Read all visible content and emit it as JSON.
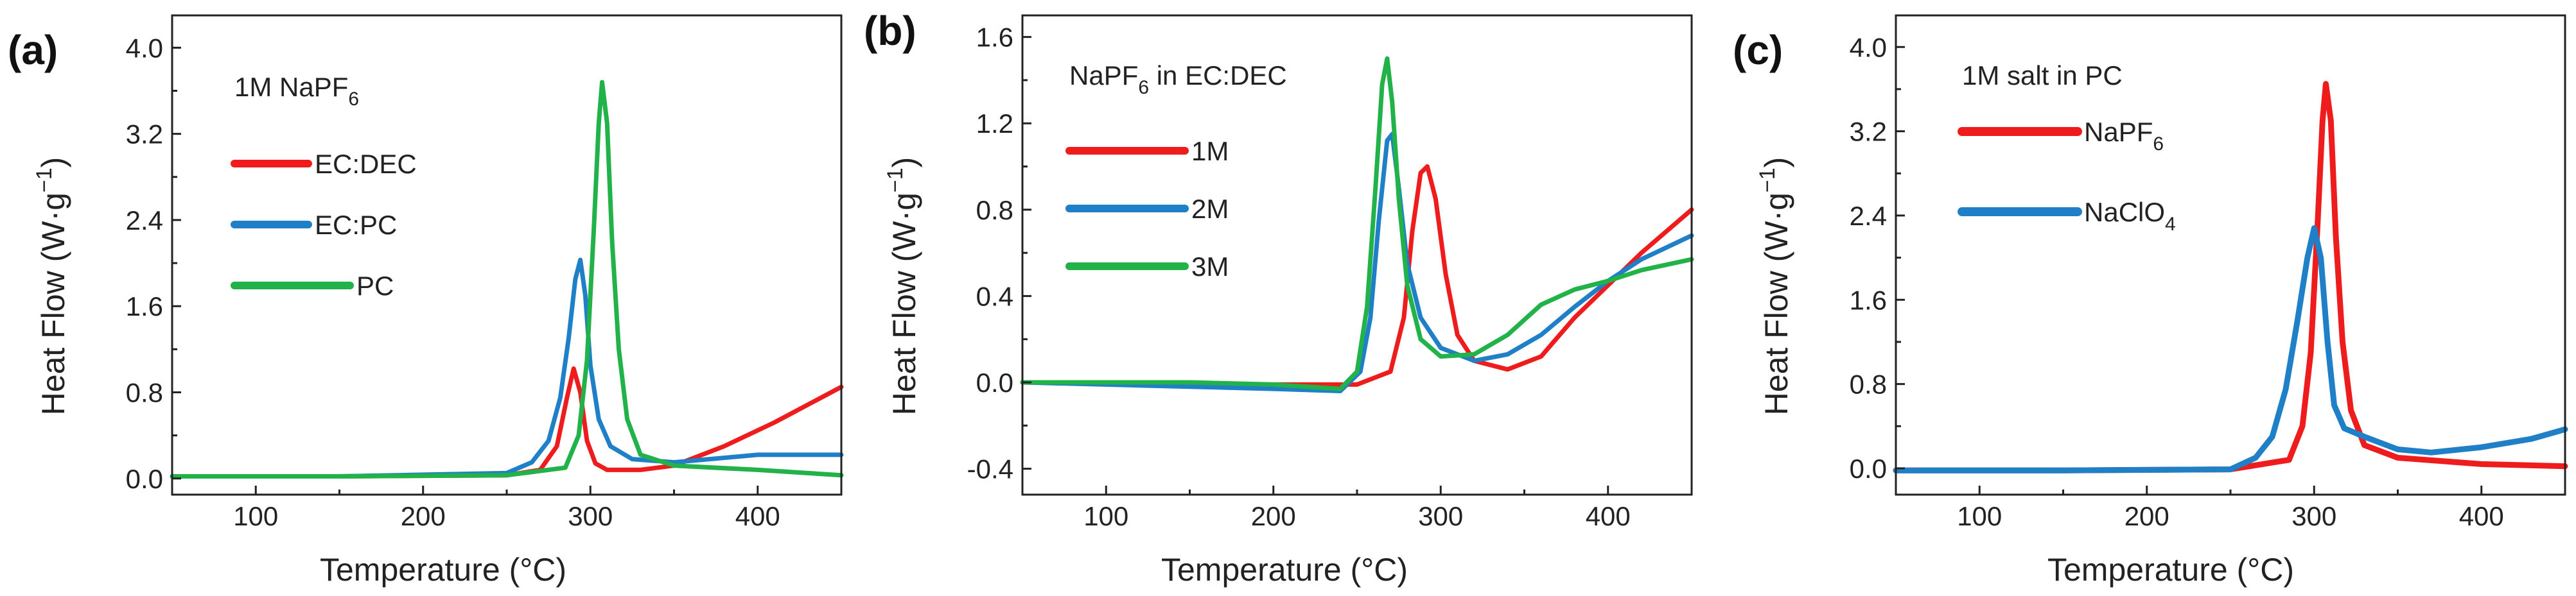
{
  "figure": {
    "colors": {
      "red": "#ee1c1c",
      "blue": "#1f80c8",
      "green": "#22b24a",
      "axis": "#222222"
    }
  },
  "chart_data": [
    {
      "panel_label": "(a)",
      "type": "line",
      "title": "1M NaPF",
      "title_sub": "6",
      "xlabel": "Temperature (°C)",
      "ylabel": "Heat Flow (W·g",
      "ylabel_sup": "−1",
      "ylabel_close": ")",
      "xlim": [
        50,
        450
      ],
      "ylim": [
        -0.15,
        4.3
      ],
      "xticks": [
        100,
        200,
        300,
        400
      ],
      "xtick_labels": [
        "100",
        "200",
        "300",
        "400"
      ],
      "yticks": [
        0.0,
        0.8,
        1.6,
        2.4,
        3.2,
        4.0
      ],
      "ytick_labels": [
        "0.0",
        "0.8",
        "1.6",
        "2.4",
        "3.2",
        "4.0"
      ],
      "series": [
        {
          "name": "EC:DEC",
          "color": "#ee1c1c",
          "x": [
            50,
            150,
            250,
            270,
            280,
            286,
            290,
            294,
            298,
            303,
            310,
            330,
            350,
            380,
            410,
            450
          ],
          "y": [
            0.02,
            0.02,
            0.03,
            0.08,
            0.3,
            0.75,
            1.02,
            0.8,
            0.35,
            0.14,
            0.08,
            0.08,
            0.12,
            0.3,
            0.52,
            0.85
          ]
        },
        {
          "name": "EC:PC",
          "color": "#1f80c8",
          "x": [
            50,
            150,
            250,
            265,
            275,
            282,
            287,
            291,
            294,
            297,
            300,
            305,
            312,
            325,
            350,
            400,
            450
          ],
          "y": [
            0.02,
            0.02,
            0.05,
            0.15,
            0.35,
            0.75,
            1.3,
            1.85,
            2.03,
            1.7,
            1.05,
            0.55,
            0.3,
            0.18,
            0.15,
            0.22,
            0.22
          ]
        },
        {
          "name": "PC",
          "color": "#22b24a",
          "x": [
            50,
            150,
            250,
            285,
            293,
            298,
            302,
            305,
            307,
            310,
            313,
            317,
            322,
            330,
            350,
            400,
            450
          ],
          "y": [
            0.02,
            0.02,
            0.03,
            0.1,
            0.4,
            1.1,
            2.3,
            3.3,
            3.68,
            3.3,
            2.2,
            1.2,
            0.55,
            0.22,
            0.12,
            0.08,
            0.03
          ]
        }
      ]
    },
    {
      "panel_label": "(b)",
      "type": "line",
      "title": "NaPF",
      "title_sub": "6",
      "title_rest": " in EC:DEC",
      "xlabel": "Temperature (°C)",
      "ylabel": "Heat Flow (W·g",
      "ylabel_sup": "−1",
      "ylabel_close": ")",
      "xlim": [
        50,
        450
      ],
      "ylim": [
        -0.52,
        1.7
      ],
      "xticks": [
        100,
        200,
        300,
        400
      ],
      "xtick_labels": [
        "100",
        "200",
        "300",
        "400"
      ],
      "yticks": [
        -0.4,
        0.0,
        0.4,
        0.8,
        1.2,
        1.6
      ],
      "ytick_labels": [
        "-0.4",
        "0.0",
        "0.4",
        "0.8",
        "1.2",
        "1.6"
      ],
      "series": [
        {
          "name": "1M",
          "color": "#ee1c1c",
          "x": [
            50,
            150,
            250,
            270,
            278,
            283,
            288,
            292,
            297,
            303,
            310,
            320,
            340,
            360,
            380,
            400,
            420,
            450
          ],
          "y": [
            0.0,
            -0.01,
            -0.01,
            0.05,
            0.3,
            0.7,
            0.97,
            1.0,
            0.85,
            0.5,
            0.22,
            0.1,
            0.06,
            0.12,
            0.3,
            0.45,
            0.6,
            0.8
          ]
        },
        {
          "name": "2M",
          "color": "#1f80c8",
          "x": [
            50,
            150,
            200,
            240,
            252,
            258,
            263,
            268,
            271,
            275,
            280,
            288,
            300,
            320,
            340,
            360,
            380,
            400,
            420,
            450
          ],
          "y": [
            0.0,
            -0.02,
            -0.03,
            -0.04,
            0.05,
            0.3,
            0.75,
            1.12,
            1.15,
            0.9,
            0.55,
            0.3,
            0.16,
            0.1,
            0.13,
            0.22,
            0.35,
            0.47,
            0.57,
            0.68
          ]
        },
        {
          "name": "3M",
          "color": "#22b24a",
          "x": [
            50,
            150,
            200,
            240,
            250,
            256,
            261,
            265,
            268,
            271,
            275,
            280,
            288,
            300,
            320,
            340,
            360,
            380,
            400,
            420,
            450
          ],
          "y": [
            0.0,
            0.0,
            -0.01,
            -0.03,
            0.05,
            0.35,
            0.9,
            1.38,
            1.5,
            1.3,
            0.85,
            0.45,
            0.2,
            0.12,
            0.13,
            0.22,
            0.36,
            0.43,
            0.47,
            0.52,
            0.57
          ]
        }
      ]
    },
    {
      "panel_label": "(c)",
      "type": "line",
      "title": "1M salt in PC",
      "xlabel": "Temperature (°C)",
      "ylabel": "Heat Flow (W·g",
      "ylabel_sup": "−1",
      "ylabel_close": ")",
      "xlim": [
        50,
        450
      ],
      "ylim": [
        -0.25,
        4.3
      ],
      "xticks": [
        100,
        200,
        300,
        400
      ],
      "xtick_labels": [
        "100",
        "200",
        "300",
        "400"
      ],
      "yticks": [
        0.0,
        0.8,
        1.6,
        2.4,
        3.2,
        4.0
      ],
      "ytick_labels": [
        "0.0",
        "0.8",
        "1.6",
        "2.4",
        "3.2",
        "4.0"
      ],
      "series": [
        {
          "name": "NaPF",
          "name_sub": "6",
          "color": "#ee1c1c",
          "x": [
            50,
            150,
            250,
            285,
            293,
            298,
            302,
            305,
            307,
            310,
            313,
            317,
            322,
            330,
            350,
            400,
            450
          ],
          "y": [
            -0.02,
            -0.02,
            -0.01,
            0.08,
            0.4,
            1.1,
            2.3,
            3.3,
            3.65,
            3.3,
            2.2,
            1.2,
            0.55,
            0.22,
            0.1,
            0.04,
            0.02
          ]
        },
        {
          "name": "NaClO",
          "name_sub": "4",
          "color": "#1f80c8",
          "x": [
            50,
            150,
            250,
            265,
            275,
            283,
            290,
            296,
            300,
            304,
            308,
            312,
            318,
            330,
            350,
            370,
            400,
            430,
            450
          ],
          "y": [
            -0.02,
            -0.02,
            -0.01,
            0.1,
            0.3,
            0.75,
            1.4,
            2.0,
            2.28,
            2.0,
            1.2,
            0.6,
            0.38,
            0.3,
            0.18,
            0.15,
            0.2,
            0.28,
            0.37
          ]
        }
      ]
    }
  ]
}
